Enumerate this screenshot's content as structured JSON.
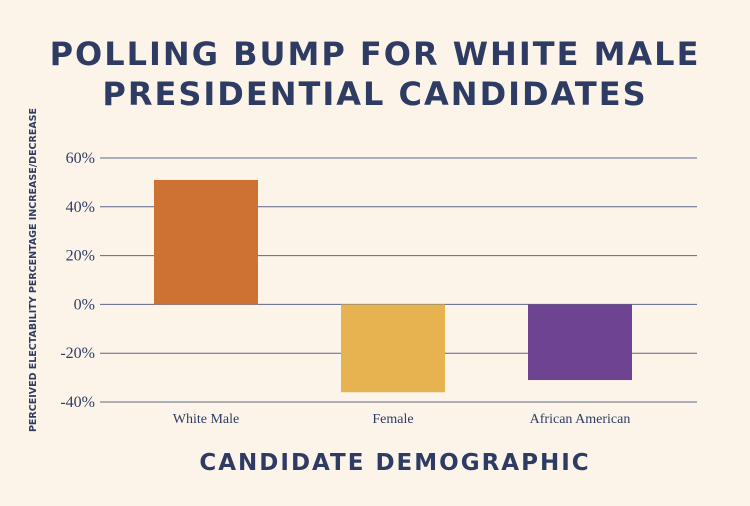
{
  "chart_data": {
    "type": "bar",
    "title_lines": [
      "POLLING BUMP FOR WHITE MALE",
      "PRESIDENTIAL CANDIDATES"
    ],
    "xlabel": "CANDIDATE DEMOGRAPHIC",
    "ylabel": "PERCEIVED ELECTABILITY PERCENTAGE INCREASE/DECREASE",
    "categories": [
      "White Male",
      "Female",
      "African American"
    ],
    "values": [
      51,
      -36,
      -31
    ],
    "colors": [
      "#cd7232",
      "#e6b350",
      "#6e4390"
    ],
    "ylim": [
      -40,
      60
    ],
    "yticks": [
      60,
      40,
      20,
      0,
      -20,
      -40
    ],
    "ytick_labels": [
      "60%",
      "40%",
      "20%",
      "0%",
      "-20%",
      "-40%"
    ],
    "grid": true,
    "gridline_color": "#5b6788",
    "text_color": "#2e3c64"
  }
}
